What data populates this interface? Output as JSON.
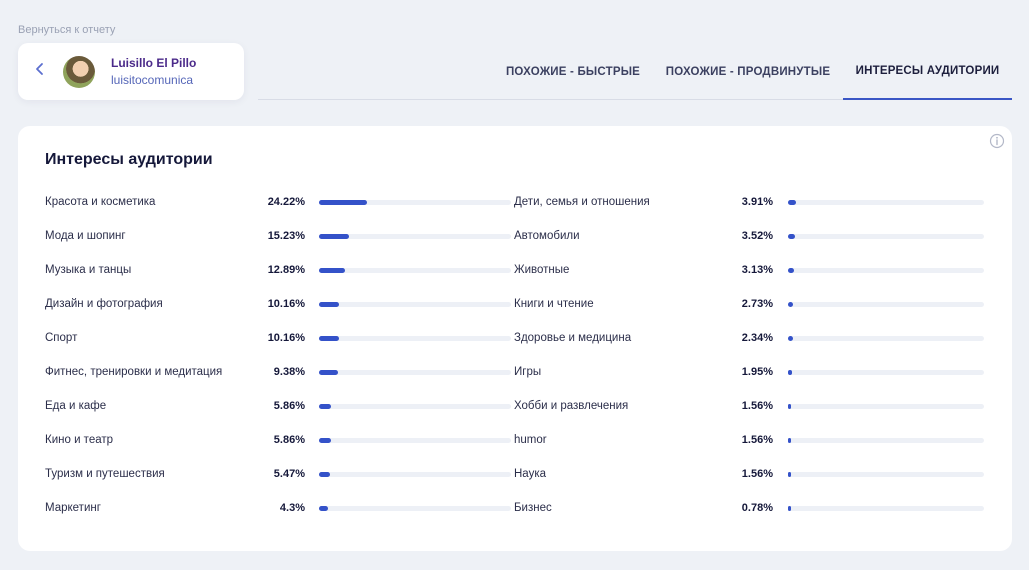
{
  "back_link": "Вернуться к отчету",
  "profile": {
    "name": "Luisillo El Pillo",
    "handle": "luisitocomunica"
  },
  "tabs": [
    {
      "label": "ПОХОЖИЕ - БЫСТРЫЕ",
      "active": false
    },
    {
      "label": "ПОХОЖИЕ - ПРОДВИНУТЫЕ",
      "active": false
    },
    {
      "label": "ИНТЕРЕСЫ АУДИТОРИИ",
      "active": true
    }
  ],
  "panel": {
    "title": "Интересы аудитории",
    "left": [
      {
        "label": "Красота и косметика",
        "value": "24.22%",
        "pct": 24.22
      },
      {
        "label": "Мода и шопинг",
        "value": "15.23%",
        "pct": 15.23
      },
      {
        "label": "Музыка и танцы",
        "value": "12.89%",
        "pct": 12.89
      },
      {
        "label": "Дизайн и фотография",
        "value": "10.16%",
        "pct": 10.16
      },
      {
        "label": "Спорт",
        "value": "10.16%",
        "pct": 10.16
      },
      {
        "label": "Фитнес, тренировки и медитация",
        "value": "9.38%",
        "pct": 9.38
      },
      {
        "label": "Еда и кафе",
        "value": "5.86%",
        "pct": 5.86
      },
      {
        "label": "Кино и театр",
        "value": "5.86%",
        "pct": 5.86
      },
      {
        "label": "Туризм и путешествия",
        "value": "5.47%",
        "pct": 5.47
      },
      {
        "label": "Маркетинг",
        "value": "4.3%",
        "pct": 4.3
      }
    ],
    "right": [
      {
        "label": "Дети, семья и отношения",
        "value": "3.91%",
        "pct": 3.91
      },
      {
        "label": "Автомобили",
        "value": "3.52%",
        "pct": 3.52
      },
      {
        "label": "Животные",
        "value": "3.13%",
        "pct": 3.13
      },
      {
        "label": "Книги и чтение",
        "value": "2.73%",
        "pct": 2.73
      },
      {
        "label": "Здоровье и медицина",
        "value": "2.34%",
        "pct": 2.34
      },
      {
        "label": "Игры",
        "value": "1.95%",
        "pct": 1.95
      },
      {
        "label": "Хобби и развлечения",
        "value": "1.56%",
        "pct": 1.56
      },
      {
        "label": "humor",
        "value": "1.56%",
        "pct": 1.56
      },
      {
        "label": "Наука",
        "value": "1.56%",
        "pct": 1.56
      },
      {
        "label": "Бизнес",
        "value": "0.78%",
        "pct": 0.78
      }
    ]
  },
  "colors": {
    "accent": "#3452c9",
    "track": "#edf0f6",
    "profile_name": "#4b2a8a"
  }
}
